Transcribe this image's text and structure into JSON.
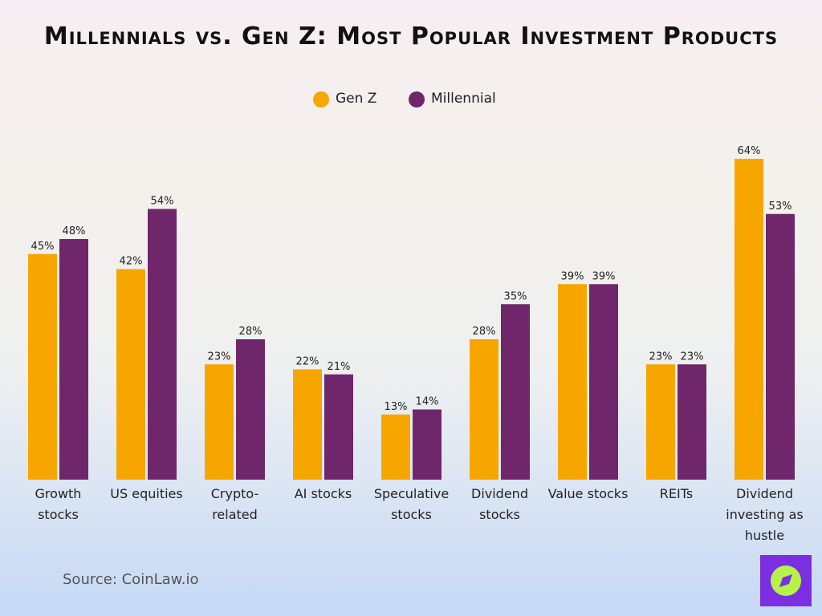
{
  "chart_data": {
    "type": "bar",
    "title": "Millennials vs. Gen Z: Most Popular Investment Products",
    "categories": [
      "Growth stocks",
      "US equities",
      "Crypto-related",
      "AI stocks",
      "Speculative stocks",
      "Dividend stocks",
      "Value stocks",
      "REITs",
      "Dividend investing as hustle"
    ],
    "series": [
      {
        "name": "Gen Z",
        "color": "#f7a600",
        "values": [
          45,
          42,
          23,
          22,
          13,
          28,
          39,
          23,
          64
        ],
        "value_labels": [
          "45%",
          "42%",
          "23%",
          "22%",
          "13%",
          "28%",
          "39%",
          "23%",
          "64%"
        ]
      },
      {
        "name": "Millennial",
        "color": "#70266b",
        "values": [
          48,
          54,
          28,
          21,
          14,
          35,
          39,
          23,
          53
        ],
        "value_labels": [
          "48%",
          "54%",
          "28%",
          "21%",
          "14%",
          "35%",
          "39%",
          "23%",
          "53%"
        ]
      }
    ],
    "legend": "top",
    "source": "Source: CoinLaw.io"
  }
}
